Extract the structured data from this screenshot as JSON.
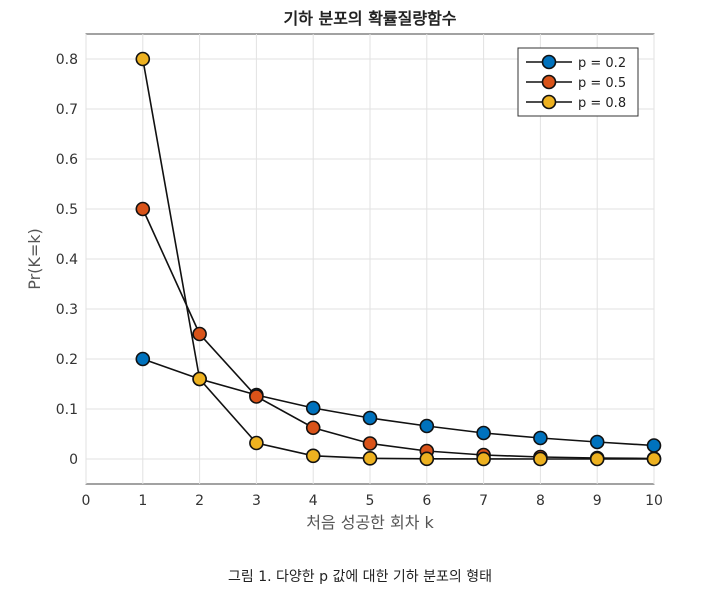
{
  "caption": "그림 1. 다양한 p 값에 대한 기하 분포의 형태",
  "chart_data": {
    "type": "line",
    "title": "기하 분포의 확률질량함수",
    "xlabel": "처음 성공한 회차 k",
    "ylabel": "Pr(K=k)",
    "xlim": [
      0,
      10
    ],
    "ylim": [
      -0.05,
      0.85
    ],
    "xticks": [
      0,
      1,
      2,
      3,
      4,
      5,
      6,
      7,
      8,
      9,
      10
    ],
    "yticks": [
      0,
      0.1,
      0.2,
      0.3,
      0.4,
      0.5,
      0.6,
      0.7,
      0.8
    ],
    "grid": true,
    "legend_position": "top-right",
    "x": [
      1,
      2,
      3,
      4,
      5,
      6,
      7,
      8,
      9,
      10
    ],
    "series": [
      {
        "name": "p = 0.2",
        "color": "#0072BD",
        "values": [
          0.2,
          0.16,
          0.128,
          0.102,
          0.082,
          0.066,
          0.052,
          0.042,
          0.034,
          0.027
        ]
      },
      {
        "name": "p = 0.5",
        "color": "#D95319",
        "values": [
          0.5,
          0.25,
          0.125,
          0.0625,
          0.031,
          0.016,
          0.008,
          0.004,
          0.002,
          0.001
        ]
      },
      {
        "name": "p = 0.8",
        "color": "#EDB120",
        "values": [
          0.8,
          0.16,
          0.032,
          0.0064,
          0.0013,
          0.0003,
          0.0001,
          0.0,
          0.0,
          0.0
        ]
      }
    ]
  }
}
